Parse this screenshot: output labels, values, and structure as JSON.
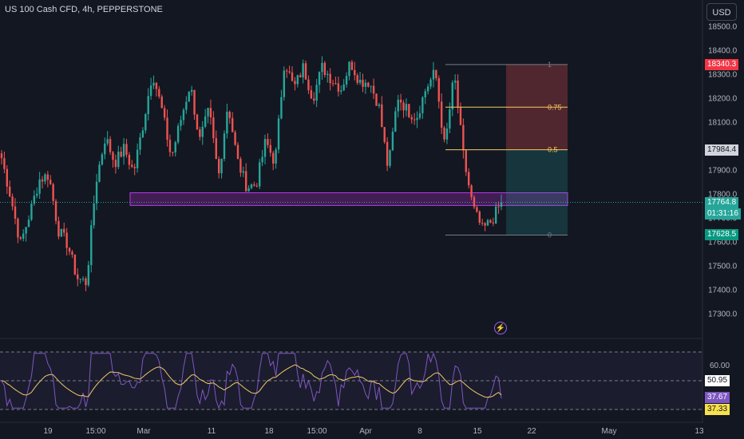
{
  "header": {
    "title": "US 100 Cash CFD, 4h, PEPPERSTONE"
  },
  "currency_button": {
    "label": "USD"
  },
  "price_axis": {
    "labels": [
      "18500.0",
      "18400.0",
      "18300.0",
      "18200.0",
      "18100.0",
      "17900.0",
      "17800.0",
      "17700.0",
      "17600.0",
      "17500.0",
      "17400.0",
      "17300.0"
    ]
  },
  "price_tags": {
    "take_profit": "18340.3",
    "fib_half": "17984.4",
    "last_price": "17764.8",
    "countdown": "01:31:16",
    "stop_low": "17628.5"
  },
  "rsi_axis": {
    "label_60": "60.00",
    "value_yellow": "50.95",
    "value_purple": "37.67",
    "value_low": "37.33"
  },
  "fib_labels": [
    "1",
    "0.75",
    "0.5",
    "0"
  ],
  "time_axis": [
    "19",
    "15:00",
    "Mar",
    "11",
    "18",
    "15:00",
    "Apr",
    "8",
    "15",
    "22",
    "May",
    "13"
  ],
  "colors": {
    "background": "#131722",
    "up": "#26a69a",
    "down": "#ef5350",
    "rsi": "#7e57c2",
    "rsi_ma": "#f0c967",
    "zone": "#9c27b0",
    "fib_line": "#f7c95c"
  },
  "icons": {
    "alert": "lightning-icon"
  },
  "chart_data": {
    "type": "candlestick",
    "symbol": "US 100 Cash CFD",
    "interval": "4h",
    "broker": "PEPPERSTONE",
    "y_range": [
      17250,
      18560
    ],
    "last_price": 17764.8,
    "support_zone": [
      17752,
      17805
    ],
    "fib_retracement": {
      "high": 18340.3,
      "low": 17628.5,
      "levels": [
        0,
        0.5,
        0.75,
        1
      ]
    },
    "long_position": {
      "entry": 17764.8,
      "target": 17984.4,
      "stop": 17628.5
    },
    "close_path": [
      17950,
      17780,
      17590,
      17720,
      17860,
      17880,
      17650,
      17590,
      17450,
      17430,
      17850,
      18040,
      17930,
      17990,
      17890,
      18090,
      18310,
      18150,
      17950,
      18110,
      18260,
      18020,
      18150,
      17870,
      18180,
      17940,
      17830,
      17840,
      18020,
      17930,
      18360,
      18240,
      18330,
      18200,
      18330,
      18280,
      18240,
      18350,
      18270,
      18270,
      18170,
      17900,
      18210,
      18150,
      18120,
      18240,
      18310,
      17990,
      18300,
      17950,
      17740,
      17650,
      17690,
      17765
    ],
    "rsi": {
      "period": 14,
      "ma": 50.95,
      "value": 37.67,
      "level_60": 60.0
    }
  }
}
